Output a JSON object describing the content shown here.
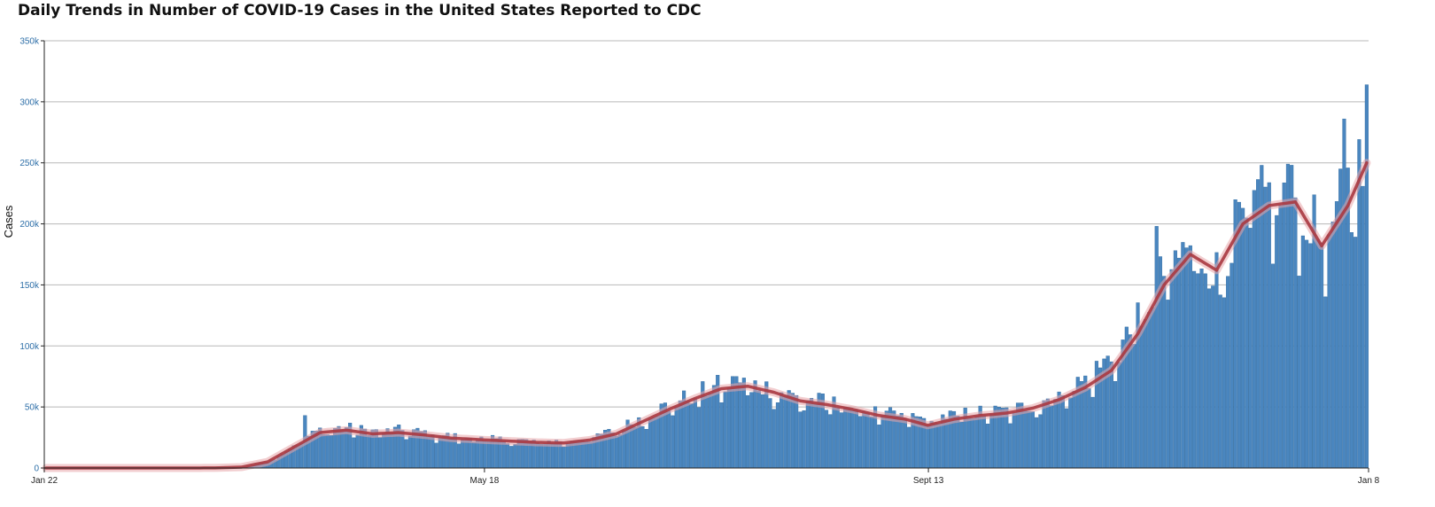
{
  "chart_data": {
    "type": "bar",
    "title": "Daily Trends in Number of COVID-19 Cases in the United States Reported to CDC",
    "ylabel": "Cases",
    "xlabel": "",
    "start_date": "2020-01-22",
    "end_date": "2021-01-08",
    "ylim": [
      0,
      350000
    ],
    "y_ticks": [
      {
        "value": 0,
        "label": "0"
      },
      {
        "value": 50000,
        "label": "50k"
      },
      {
        "value": 100000,
        "label": "100k"
      },
      {
        "value": 150000,
        "label": "150k"
      },
      {
        "value": 200000,
        "label": "200k"
      },
      {
        "value": 250000,
        "label": "250k"
      },
      {
        "value": 300000,
        "label": "300k"
      },
      {
        "value": 350000,
        "label": "350k"
      }
    ],
    "x_ticks": [
      {
        "date": "2020-01-22",
        "label": "Jan 22"
      },
      {
        "date": "2020-05-18",
        "label": "May 18"
      },
      {
        "date": "2020-09-13",
        "label": "Sept 13"
      },
      {
        "date": "2021-01-08",
        "label": "Jan 8"
      }
    ],
    "grid": true,
    "legend": "none",
    "colors": {
      "bar": "#4a86bf",
      "bar_edge": "#2f6a9f",
      "moving_average": "#a83840",
      "moving_average_glow": "#e8a6aa",
      "grid": "#b8b8b8",
      "axis": "#222222",
      "y_tick_label": "#2e6fa8"
    },
    "series": [
      {
        "type": "bar",
        "anchors": [
          [
            "2020-01-22",
            0
          ],
          [
            "2020-02-29",
            0
          ],
          [
            "2020-03-07",
            200
          ],
          [
            "2020-03-14",
            700
          ],
          [
            "2020-03-21",
            5000
          ],
          [
            "2020-03-28",
            18000
          ],
          [
            "2020-04-04",
            30000
          ],
          [
            "2020-04-11",
            32000
          ],
          [
            "2020-04-18",
            29000
          ],
          [
            "2020-04-25",
            30000
          ],
          [
            "2020-05-02",
            28000
          ],
          [
            "2020-05-09",
            25000
          ],
          [
            "2020-05-18",
            23000
          ],
          [
            "2020-05-25",
            22000
          ],
          [
            "2020-06-01",
            21000
          ],
          [
            "2020-06-08",
            21000
          ],
          [
            "2020-06-15",
            24000
          ],
          [
            "2020-06-22",
            30000
          ],
          [
            "2020-06-29",
            40000
          ],
          [
            "2020-07-06",
            50000
          ],
          [
            "2020-07-13",
            58000
          ],
          [
            "2020-07-20",
            66000
          ],
          [
            "2020-07-27",
            67000
          ],
          [
            "2020-08-03",
            62000
          ],
          [
            "2020-08-10",
            55000
          ],
          [
            "2020-08-17",
            52000
          ],
          [
            "2020-08-24",
            48000
          ],
          [
            "2020-08-31",
            43000
          ],
          [
            "2020-09-07",
            41000
          ],
          [
            "2020-09-13",
            38000
          ],
          [
            "2020-09-20",
            42000
          ],
          [
            "2020-09-27",
            44000
          ],
          [
            "2020-10-04",
            45000
          ],
          [
            "2020-10-11",
            50000
          ],
          [
            "2020-10-18",
            58000
          ],
          [
            "2020-10-25",
            70000
          ],
          [
            "2020-11-01",
            88000
          ],
          [
            "2020-11-08",
            115000
          ],
          [
            "2020-11-15",
            155000
          ],
          [
            "2020-11-22",
            175000
          ],
          [
            "2020-11-29",
            155000
          ],
          [
            "2020-12-06",
            200000
          ],
          [
            "2020-12-13",
            215000
          ],
          [
            "2020-12-20",
            215000
          ],
          [
            "2020-12-27",
            180000
          ],
          [
            "2021-01-03",
            220000
          ],
          [
            "2021-01-08",
            260000
          ]
        ],
        "notable_peaks": [
          [
            "2020-03-31",
            43000
          ],
          [
            "2020-07-24",
            75000
          ],
          [
            "2020-11-13",
            198000
          ],
          [
            "2020-12-11",
            248000
          ],
          [
            "2020-12-18",
            249000
          ],
          [
            "2021-01-02",
            286000
          ],
          [
            "2021-01-08",
            314000
          ]
        ]
      },
      {
        "type": "line",
        "anchors": [
          [
            "2020-01-22",
            0
          ],
          [
            "2020-02-29",
            0
          ],
          [
            "2020-03-07",
            100
          ],
          [
            "2020-03-14",
            700
          ],
          [
            "2020-03-21",
            5000
          ],
          [
            "2020-03-28",
            17000
          ],
          [
            "2020-04-04",
            29000
          ],
          [
            "2020-04-11",
            31000
          ],
          [
            "2020-04-18",
            28000
          ],
          [
            "2020-04-25",
            29000
          ],
          [
            "2020-05-02",
            27000
          ],
          [
            "2020-05-09",
            24500
          ],
          [
            "2020-05-18",
            23000
          ],
          [
            "2020-05-25",
            22000
          ],
          [
            "2020-06-01",
            21000
          ],
          [
            "2020-06-08",
            20500
          ],
          [
            "2020-06-15",
            23000
          ],
          [
            "2020-06-22",
            28000
          ],
          [
            "2020-06-29",
            38000
          ],
          [
            "2020-07-06",
            48000
          ],
          [
            "2020-07-13",
            57000
          ],
          [
            "2020-07-20",
            65000
          ],
          [
            "2020-07-27",
            67000
          ],
          [
            "2020-08-03",
            62000
          ],
          [
            "2020-08-10",
            55000
          ],
          [
            "2020-08-17",
            52000
          ],
          [
            "2020-08-24",
            48000
          ],
          [
            "2020-08-31",
            43000
          ],
          [
            "2020-09-07",
            40000
          ],
          [
            "2020-09-13",
            35000
          ],
          [
            "2020-09-20",
            40000
          ],
          [
            "2020-09-27",
            43000
          ],
          [
            "2020-10-04",
            45000
          ],
          [
            "2020-10-11",
            49000
          ],
          [
            "2020-10-18",
            56000
          ],
          [
            "2020-10-25",
            66000
          ],
          [
            "2020-11-01",
            80000
          ],
          [
            "2020-11-08",
            110000
          ],
          [
            "2020-11-15",
            150000
          ],
          [
            "2020-11-22",
            175000
          ],
          [
            "2020-11-29",
            162000
          ],
          [
            "2020-12-06",
            200000
          ],
          [
            "2020-12-13",
            215000
          ],
          [
            "2020-12-20",
            218000
          ],
          [
            "2020-12-27",
            182000
          ],
          [
            "2021-01-03",
            215000
          ],
          [
            "2021-01-08",
            250000
          ]
        ]
      }
    ]
  }
}
